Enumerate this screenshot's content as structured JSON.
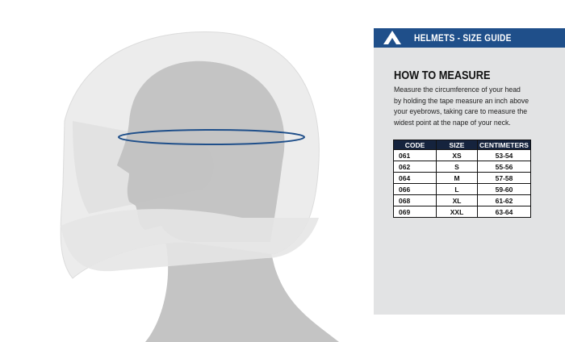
{
  "header": {
    "title": "HELMETS - SIZE GUIDE"
  },
  "section": {
    "title": "HOW TO MEASURE",
    "lines": [
      "Measure the circumference of your head",
      "by holding the tape measure an inch above",
      "your eyebrows, taking care to measure the",
      "widest point at the nape of your neck."
    ]
  },
  "table": {
    "columns": [
      "CODE",
      "SIZE",
      "CENTIMETERS"
    ],
    "rows": [
      [
        "061",
        "XS",
        "53-54"
      ],
      [
        "062",
        "S",
        "55-56"
      ],
      [
        "064",
        "M",
        "57-58"
      ],
      [
        "066",
        "L",
        "59-60"
      ],
      [
        "068",
        "XL",
        "61-62"
      ],
      [
        "069",
        "XXL",
        "63-64"
      ]
    ]
  }
}
